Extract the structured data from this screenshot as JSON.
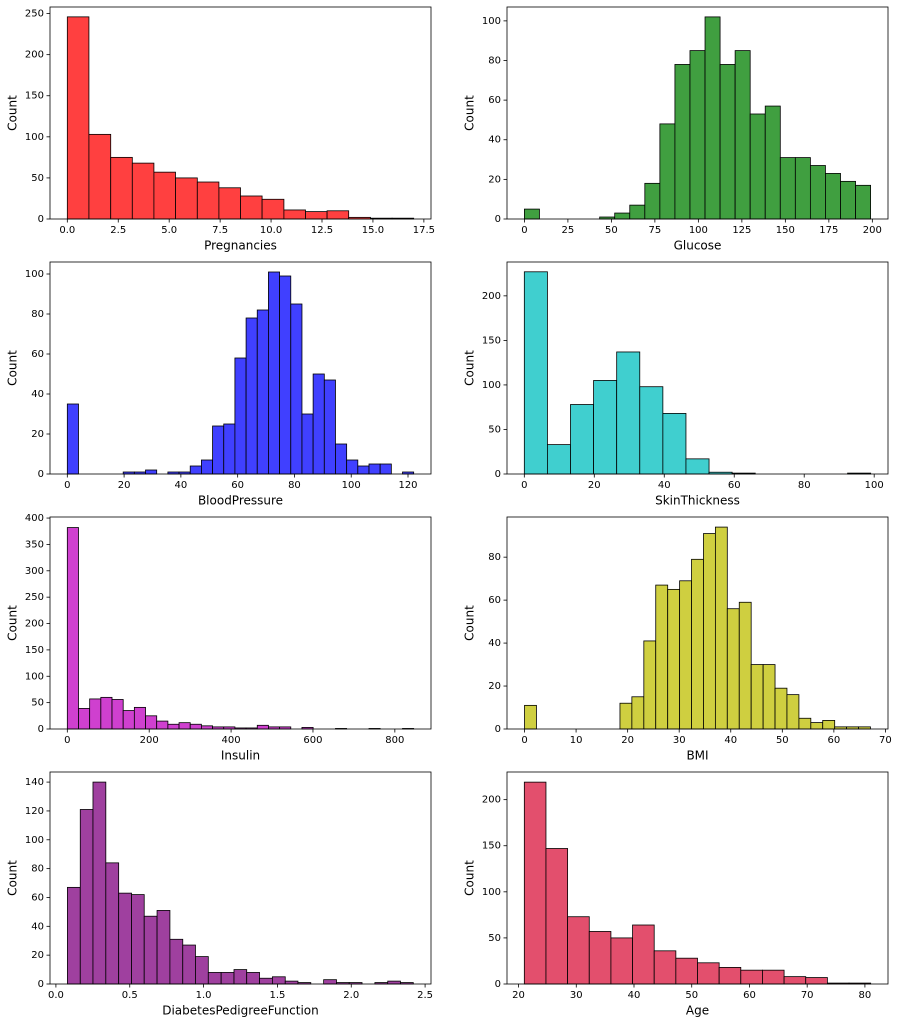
{
  "chart_data": [
    {
      "type": "histogram",
      "xlabel": "Pregnancies",
      "ylabel": "Count",
      "color": "#ff4040",
      "bins": [
        0,
        1.06,
        2.13,
        3.19,
        4.25,
        5.31,
        6.38,
        7.44,
        8.5,
        9.56,
        10.63,
        11.69,
        12.75,
        13.81,
        14.88,
        15.94,
        17
      ],
      "values": [
        246,
        103,
        75,
        68,
        57,
        50,
        45,
        38,
        28,
        24,
        11,
        9,
        10,
        2,
        1,
        1
      ],
      "xlim": [
        -0.85,
        17.85
      ],
      "ylim": [
        0,
        258
      ],
      "xticks": [
        {
          "value": 0,
          "label": "0.0"
        },
        2.5,
        {
          "value": 5,
          "label": "5.0"
        },
        7.5,
        {
          "value": 10,
          "label": "10.0"
        },
        12.5,
        {
          "value": 15,
          "label": "15.0"
        },
        17.5
      ],
      "yticks": [
        0,
        50,
        100,
        150,
        200,
        250
      ]
    },
    {
      "type": "histogram",
      "xlabel": "Glucose",
      "ylabel": "Count",
      "color": "#409f40",
      "bins": [
        0,
        8.65,
        17.3,
        25.96,
        34.61,
        43.26,
        51.91,
        60.57,
        69.22,
        77.87,
        86.52,
        95.17,
        103.83,
        112.48,
        121.13,
        129.78,
        138.43,
        147.09,
        155.74,
        164.39,
        173.04,
        181.7,
        190.35,
        199
      ],
      "values": [
        5,
        0,
        0,
        0,
        0,
        1,
        3,
        7,
        18,
        48,
        78,
        85,
        102,
        78,
        85,
        53,
        57,
        31,
        31,
        27,
        23,
        19,
        17
      ],
      "xlim": [
        -10,
        209
      ],
      "ylim": [
        0,
        107
      ],
      "xticks": [
        0,
        25,
        50,
        75,
        100,
        125,
        150,
        175,
        200
      ],
      "yticks": [
        0,
        20,
        40,
        60,
        80,
        100
      ]
    },
    {
      "type": "histogram",
      "xlabel": "BloodPressure",
      "ylabel": "Count",
      "color": "#4040ff",
      "bins": [
        0,
        3.94,
        7.87,
        11.81,
        15.74,
        19.68,
        23.61,
        27.55,
        31.48,
        35.42,
        39.35,
        43.29,
        47.23,
        51.16,
        55.1,
        59.03,
        62.97,
        66.9,
        70.84,
        74.77,
        78.71,
        82.65,
        86.58,
        90.52,
        94.45,
        98.39,
        102.32,
        106.26,
        110.19,
        114.13,
        118.06,
        122
      ],
      "values": [
        35,
        0,
        0,
        0,
        0,
        1,
        1,
        2,
        0,
        1,
        1,
        4,
        7,
        24,
        25,
        58,
        78,
        82,
        101,
        99,
        85,
        30,
        50,
        47,
        15,
        7,
        4,
        5,
        5,
        0,
        1
      ],
      "xlim": [
        -6.1,
        128.1
      ],
      "ylim": [
        0,
        106
      ],
      "xticks": [
        0,
        20,
        40,
        60,
        80,
        100,
        120
      ],
      "yticks": [
        0,
        20,
        40,
        60,
        80,
        100
      ]
    },
    {
      "type": "histogram",
      "xlabel": "SkinThickness",
      "ylabel": "Count",
      "color": "#40cfcf",
      "bins": [
        0,
        6.6,
        13.2,
        19.8,
        26.4,
        33,
        39.6,
        46.2,
        52.8,
        59.4,
        66,
        72.6,
        79.2,
        85.8,
        92.4,
        99
      ],
      "values": [
        227,
        33,
        78,
        105,
        137,
        98,
        68,
        17,
        2,
        1,
        0,
        0,
        0,
        0,
        1
      ],
      "xlim": [
        -4.95,
        103.95
      ],
      "ylim": [
        0,
        238
      ],
      "xticks": [
        0,
        20,
        40,
        60,
        80,
        100
      ],
      "yticks": [
        0,
        50,
        100,
        150,
        200
      ]
    },
    {
      "type": "histogram",
      "xlabel": "Insulin",
      "ylabel": "Count",
      "color": "#cf40cf",
      "bins": [
        0,
        27.29,
        54.58,
        81.87,
        109.16,
        136.45,
        163.74,
        191.03,
        218.32,
        245.61,
        272.9,
        300.19,
        327.48,
        354.77,
        382.06,
        409.35,
        436.65,
        463.94,
        491.23,
        518.52,
        545.81,
        573.1,
        600.39,
        627.68,
        654.97,
        682.26,
        709.55,
        736.84,
        764.13,
        791.42,
        818.71,
        846
      ],
      "values": [
        382,
        39,
        57,
        60,
        56,
        35,
        41,
        25,
        15,
        9,
        12,
        9,
        6,
        4,
        4,
        2,
        2,
        7,
        4,
        4,
        0,
        3,
        0,
        0,
        1,
        0,
        0,
        1,
        0,
        0,
        1
      ],
      "xlim": [
        -42.3,
        888.3
      ],
      "ylim": [
        0,
        402
      ],
      "xticks": [
        0,
        200,
        400,
        600,
        800
      ],
      "yticks": [
        0,
        50,
        100,
        150,
        200,
        250,
        300,
        350,
        400
      ]
    },
    {
      "type": "histogram",
      "xlabel": "BMI",
      "ylabel": "Count",
      "color": "#cfcf40",
      "bins": [
        0,
        2.31,
        4.63,
        6.94,
        9.26,
        11.57,
        13.88,
        16.2,
        18.51,
        20.82,
        23.14,
        25.45,
        27.77,
        30.08,
        32.39,
        34.71,
        37.02,
        39.33,
        41.65,
        43.96,
        46.28,
        48.59,
        50.9,
        53.22,
        55.53,
        57.84,
        60.16,
        62.47,
        64.79,
        67.1
      ],
      "values": [
        11,
        0,
        0,
        0,
        0,
        0,
        0,
        0,
        12,
        15,
        41,
        67,
        65,
        69,
        79,
        91,
        94,
        56,
        59,
        30,
        30,
        19,
        16,
        5,
        3,
        4,
        1,
        1,
        1
      ],
      "xlim": [
        -3.4,
        70.5
      ],
      "ylim": [
        0,
        98.7
      ],
      "xticks": [
        0,
        10,
        20,
        30,
        40,
        50,
        60,
        70
      ],
      "yticks": [
        0,
        20,
        40,
        60,
        80
      ]
    },
    {
      "type": "histogram",
      "xlabel": "DiabetesPedigreeFunction",
      "ylabel": "Count",
      "color": "#9f409f",
      "bins": [
        0.078,
        0.165,
        0.251,
        0.338,
        0.425,
        0.512,
        0.598,
        0.685,
        0.772,
        0.859,
        0.945,
        1.032,
        1.119,
        1.206,
        1.292,
        1.379,
        1.466,
        1.553,
        1.639,
        1.726,
        1.813,
        1.9,
        1.986,
        2.073,
        2.16,
        2.247,
        2.333,
        2.42
      ],
      "values": [
        67,
        121,
        140,
        84,
        63,
        62,
        47,
        51,
        31,
        27,
        19,
        8,
        8,
        10,
        8,
        4,
        5,
        2,
        1,
        0,
        3,
        1,
        1,
        0,
        1,
        2,
        1
      ],
      "xlim": [
        -0.04,
        2.54
      ],
      "ylim": [
        0,
        147
      ],
      "xticks": [
        {
          "value": 0,
          "label": "0.0"
        },
        0.5,
        {
          "value": 1,
          "label": "1.0"
        },
        1.5,
        {
          "value": 2,
          "label": "2.0"
        },
        2.5
      ],
      "yticks": [
        0,
        20,
        40,
        60,
        80,
        100,
        120,
        140
      ]
    },
    {
      "type": "histogram",
      "xlabel": "Age",
      "ylabel": "Count",
      "color": "#e34f6d",
      "bins": [
        21,
        24.75,
        28.5,
        32.25,
        36,
        39.75,
        43.5,
        47.25,
        51,
        54.75,
        58.5,
        62.25,
        66,
        69.75,
        73.5,
        77.25,
        81
      ],
      "values": [
        219,
        147,
        73,
        57,
        50,
        64,
        36,
        28,
        23,
        18,
        15,
        15,
        8,
        7,
        1,
        1
      ],
      "xlim": [
        18,
        84
      ],
      "ylim": [
        0,
        230
      ],
      "xticks": [
        20,
        30,
        40,
        50,
        60,
        70,
        80
      ],
      "yticks": [
        0,
        50,
        100,
        150,
        200
      ]
    }
  ]
}
